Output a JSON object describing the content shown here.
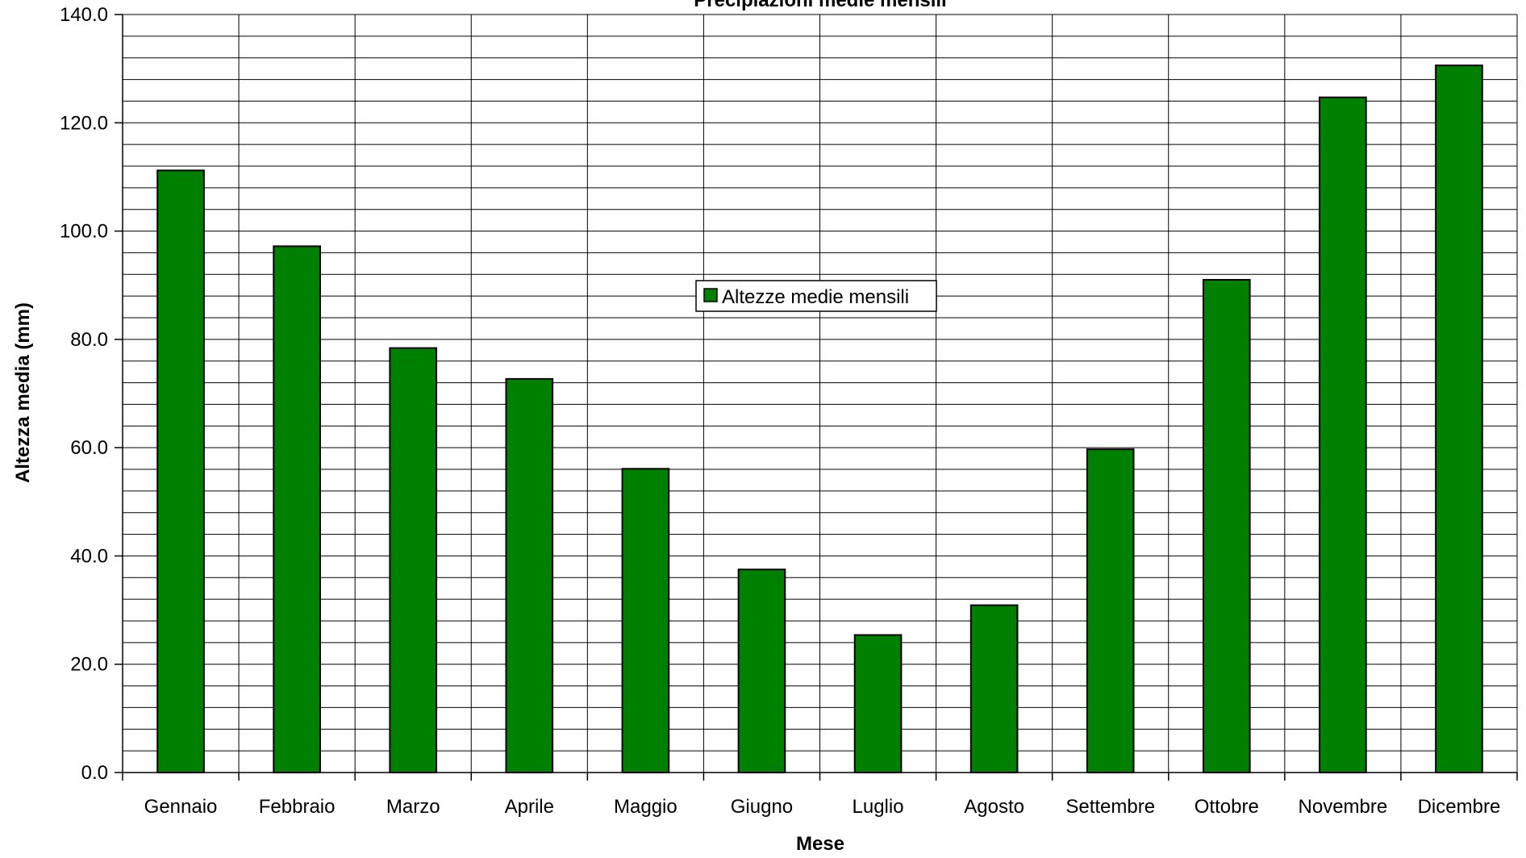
{
  "chart_data": {
    "type": "bar",
    "title": "Precipiazioni medie mensili",
    "xlabel": "Mese",
    "ylabel": "Altezza media (mm)",
    "categories": [
      "Gennaio",
      "Febbraio",
      "Marzo",
      "Aprile",
      "Maggio",
      "Giugno",
      "Luglio",
      "Agosto",
      "Settembre",
      "Ottobre",
      "Novembre",
      "Dicembre"
    ],
    "series": [
      {
        "name": "Altezze medie mensili",
        "color": "#008000",
        "values": [
          111.2,
          97.2,
          78.4,
          72.7,
          56.1,
          37.5,
          25.4,
          30.9,
          59.7,
          91.0,
          124.7,
          130.6
        ]
      }
    ],
    "ylim": [
      0,
      140
    ],
    "ytick_step": 20,
    "yticks": [
      "0.0",
      "20.0",
      "40.0",
      "60.0",
      "80.0",
      "100.0",
      "120.0",
      "140.0"
    ],
    "grid": true,
    "legend_position": "center"
  }
}
